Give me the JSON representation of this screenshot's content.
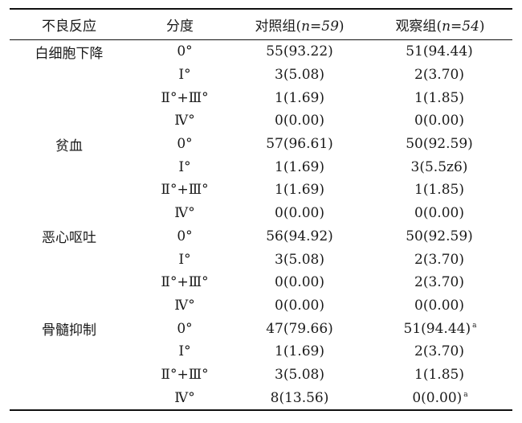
{
  "caption_fragment": "",
  "table": {
    "headers": {
      "reaction": "不良反应",
      "grade": "分度",
      "control": "对照组",
      "control_n": "n=59",
      "observe": "观察组",
      "observe_n": "n=54"
    },
    "rows": [
      {
        "reaction": "白细胞下降",
        "grade": "0°",
        "control": "55(93.22)",
        "observe": "51(94.44)",
        "observe_mark": ""
      },
      {
        "reaction": "",
        "grade": "Ⅰ°",
        "control": "3(5.08)",
        "observe": "2(3.70)",
        "observe_mark": ""
      },
      {
        "reaction": "",
        "grade": "Ⅱ°+Ⅲ°",
        "control": "1(1.69)",
        "observe": "1(1.85)",
        "observe_mark": ""
      },
      {
        "reaction": "",
        "grade": "Ⅳ°",
        "control": "0(0.00)",
        "observe": "0(0.00)",
        "observe_mark": ""
      },
      {
        "reaction": "贫血",
        "grade": "0°",
        "control": "57(96.61)",
        "observe": "50(92.59)",
        "observe_mark": ""
      },
      {
        "reaction": "",
        "grade": "Ⅰ°",
        "control": "1(1.69)",
        "observe": "3(5.5z6)",
        "observe_mark": ""
      },
      {
        "reaction": "",
        "grade": "Ⅱ°+Ⅲ°",
        "control": "1(1.69)",
        "observe": "1(1.85)",
        "observe_mark": ""
      },
      {
        "reaction": "",
        "grade": "Ⅳ°",
        "control": "0(0.00)",
        "observe": "0(0.00)",
        "observe_mark": ""
      },
      {
        "reaction": "恶心呕吐",
        "grade": "0°",
        "control": "56(94.92)",
        "observe": "50(92.59)",
        "observe_mark": ""
      },
      {
        "reaction": "",
        "grade": "Ⅰ°",
        "control": "3(5.08)",
        "observe": "2(3.70)",
        "observe_mark": ""
      },
      {
        "reaction": "",
        "grade": "Ⅱ°+Ⅲ°",
        "control": "0(0.00)",
        "observe": "2(3.70)",
        "observe_mark": ""
      },
      {
        "reaction": "",
        "grade": "Ⅳ°",
        "control": "0(0.00)",
        "observe": "0(0.00)",
        "observe_mark": ""
      },
      {
        "reaction": "骨髓抑制",
        "grade": "0°",
        "control": "47(79.66)",
        "observe": "51(94.44)",
        "observe_mark": "a"
      },
      {
        "reaction": "",
        "grade": "Ⅰ°",
        "control": "1(1.69)",
        "observe": "2(3.70)",
        "observe_mark": ""
      },
      {
        "reaction": "",
        "grade": "Ⅱ°+Ⅲ°",
        "control": "3(5.08)",
        "observe": "1(1.85)",
        "observe_mark": ""
      },
      {
        "reaction": "",
        "grade": "Ⅳ°",
        "control": "8(13.56)",
        "observe": "0(0.00)",
        "observe_mark": "a"
      }
    ]
  }
}
